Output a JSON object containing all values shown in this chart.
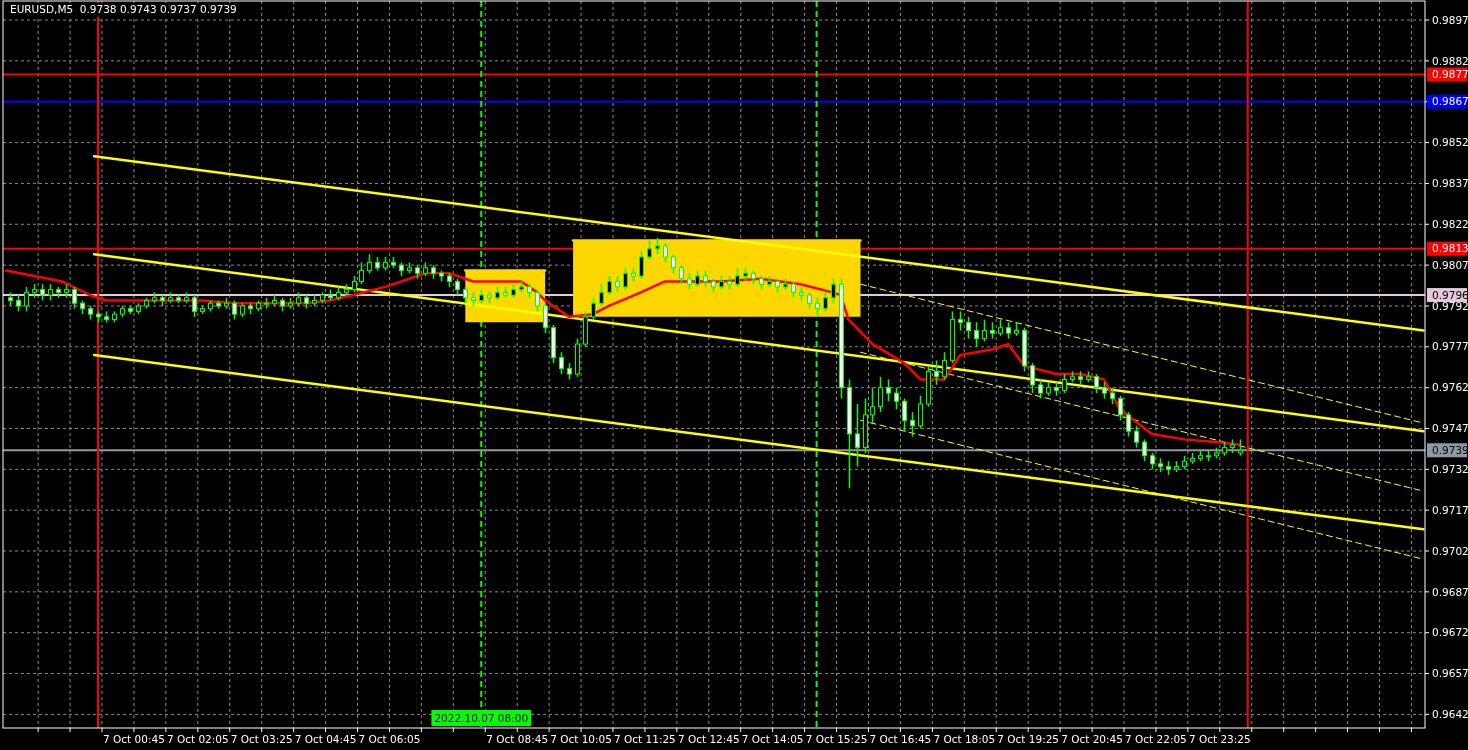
{
  "chart_data": {
    "type": "candlestick",
    "title": "EURUSD,M5  0.9738 0.9743 0.9737 0.9739",
    "xlim": [
      "2022-10-06T22:01",
      "2022-10-08T03:42"
    ],
    "ylim": [
      0.9637,
      0.9904
    ],
    "yticks": [
      0.9642,
      0.9657,
      0.9672,
      0.9687,
      0.9702,
      0.9717,
      0.9732,
      0.9747,
      0.9762,
      0.9777,
      0.9792,
      0.9807,
      0.9822,
      0.9837,
      0.9852,
      {
        "value": 0.9867,
        "label": null
      },
      0.9882,
      0.9897
    ],
    "xticks": [
      {
        "value": "2022-10-06T22:45",
        "label": null
      },
      {
        "value": "2022-10-06T23:25",
        "label": null
      },
      {
        "value": "2022-10-07T00:05",
        "label": null
      },
      {
        "value": "2022-10-07T00:45",
        "label": "7 Oct 00:45"
      },
      {
        "value": "2022-10-07T01:25",
        "label": null
      },
      {
        "value": "2022-10-07T02:05",
        "label": "7 Oct 02:05"
      },
      {
        "value": "2022-10-07T02:45",
        "label": null
      },
      {
        "value": "2022-10-07T03:25",
        "label": "7 Oct 03:25"
      },
      {
        "value": "2022-10-07T04:05",
        "label": null
      },
      {
        "value": "2022-10-07T04:45",
        "label": "7 Oct 04:45"
      },
      {
        "value": "2022-10-07T05:25",
        "label": null
      },
      {
        "value": "2022-10-07T06:05",
        "label": "7 Oct 06:05"
      },
      {
        "value": "2022-10-07T06:45",
        "label": null
      },
      {
        "value": "2022-10-07T07:25",
        "label": null
      },
      {
        "value": "2022-10-07T08:05",
        "label": null
      },
      {
        "value": "2022-10-07T08:45",
        "label": "7 Oct 08:45"
      },
      {
        "value": "2022-10-07T09:25",
        "label": null
      },
      {
        "value": "2022-10-07T10:05",
        "label": "7 Oct 10:05"
      },
      {
        "value": "2022-10-07T10:45",
        "label": null
      },
      {
        "value": "2022-10-07T11:25",
        "label": "7 Oct 11:25"
      },
      {
        "value": "2022-10-07T12:05",
        "label": null
      },
      {
        "value": "2022-10-07T12:45",
        "label": "7 Oct 12:45"
      },
      {
        "value": "2022-10-07T13:25",
        "label": null
      },
      {
        "value": "2022-10-07T14:05",
        "label": "7 Oct 14:05"
      },
      {
        "value": "2022-10-07T14:45",
        "label": null
      },
      {
        "value": "2022-10-07T15:25",
        "label": "7 Oct 15:25"
      },
      {
        "value": "2022-10-07T16:05",
        "label": null
      },
      {
        "value": "2022-10-07T16:45",
        "label": "7 Oct 16:45"
      },
      {
        "value": "2022-10-07T17:25",
        "label": null
      },
      {
        "value": "2022-10-07T18:05",
        "label": "7 Oct 18:05"
      },
      {
        "value": "2022-10-07T18:45",
        "label": null
      },
      {
        "value": "2022-10-07T19:25",
        "label": "7 Oct 19:25"
      },
      {
        "value": "2022-10-07T20:05",
        "label": null
      },
      {
        "value": "2022-10-07T20:45",
        "label": "7 Oct 20:45"
      },
      {
        "value": "2022-10-07T21:25",
        "label": null
      },
      {
        "value": "2022-10-07T22:05",
        "label": "7 Oct 22:05"
      },
      {
        "value": "2022-10-07T22:45",
        "label": null
      },
      {
        "value": "2022-10-07T23:25",
        "label": "7 Oct 23:25"
      },
      {
        "value": "2022-10-08T00:05",
        "label": null
      },
      {
        "value": "2022-10-08T00:45",
        "label": null
      },
      {
        "value": "2022-10-08T01:25",
        "label": null
      },
      {
        "value": "2022-10-08T02:05",
        "label": null
      },
      {
        "value": "2022-10-08T02:45",
        "label": null
      },
      {
        "value": "2022-10-08T03:25",
        "label": null
      }
    ],
    "grid": true,
    "ref_lines": [
      {
        "axis": "y",
        "value": 0.9877,
        "label": "0.9877",
        "color": "#ff0000"
      },
      {
        "axis": "y",
        "value": 0.9867,
        "label": "0.9867",
        "color": "#0000ff"
      },
      {
        "axis": "y",
        "value": 0.9813,
        "label": "0.9813",
        "color": "#ff0000"
      },
      {
        "axis": "y",
        "value": 0.9796,
        "label": "0.9796",
        "color": "#e6c8dc"
      },
      {
        "axis": "y",
        "value": 0.9739,
        "label": "0.9739",
        "color": "#8c9aa6"
      },
      {
        "axis": "x",
        "value": "2022-10-07T00:00",
        "color": "#ff0000"
      },
      {
        "axis": "x",
        "value": "2022-10-08T00:00",
        "color": "#ff0000"
      },
      {
        "axis": "x",
        "value": "2022-10-07T08:00",
        "label": "2022.10.07 08:00",
        "color": "#00ff00",
        "line_style": "dashed"
      },
      {
        "axis": "x",
        "value": "2022-10-07T15:00",
        "color": "#00ff00",
        "line_style": "dashed"
      }
    ],
    "series": [
      {
        "type": "line",
        "color": "#ffd700",
        "x": [
          "2022-10-07T07:40",
          "2022-10-07T09:20"
        ],
        "values": [
          0.9805,
          0.9805
        ],
        "upper": [
          0.9805,
          0.9805
        ],
        "lower": [
          0.9786,
          0.9786
        ]
      },
      {
        "type": "line",
        "color": "#ffd700",
        "x": [
          "2022-10-07T09:55",
          "2022-10-07T15:55"
        ],
        "values": [
          0.9816,
          0.9816
        ],
        "upper": [
          0.9816,
          0.9816
        ],
        "lower": [
          0.9788,
          0.9788
        ]
      },
      {
        "type": "line",
        "color": "#ffff00",
        "x": [
          "2022-10-06T23:55",
          "2022-10-08T03:40"
        ],
        "values": [
          0.9847,
          0.9783
        ]
      },
      {
        "type": "line",
        "color": "#ffff00",
        "x": [
          "2022-10-06T23:55",
          "2022-10-08T03:40"
        ],
        "values": [
          0.9811,
          0.9746
        ]
      },
      {
        "type": "line",
        "color": "#ffff00",
        "x": [
          "2022-10-06T23:55",
          "2022-10-08T03:40"
        ],
        "values": [
          0.9774,
          0.971
        ]
      },
      {
        "type": "line",
        "color": "#ffff00",
        "line_style": "dashed",
        "x": [
          "2022-10-07T15:55",
          "2022-10-08T03:40"
        ],
        "values": [
          0.98,
          0.9749
        ]
      },
      {
        "type": "line",
        "color": "#ffff00",
        "line_style": "dashed",
        "x": [
          "2022-10-07T15:55",
          "2022-10-08T03:40"
        ],
        "values": [
          0.9775,
          0.9724
        ]
      },
      {
        "type": "line",
        "color": "#ffff00",
        "line_style": "dashed",
        "x": [
          "2022-10-07T15:55",
          "2022-10-08T03:40"
        ],
        "values": [
          0.975,
          0.9699
        ]
      },
      {
        "type": "line",
        "color": "#ff0000",
        "x": [
          "2022-10-06T22:05",
          "2022-10-06T22:40",
          "2022-10-06T23:15",
          "2022-10-06T23:50",
          "2022-10-07T00:10",
          "2022-10-07T01:10",
          "2022-10-07T02:10",
          "2022-10-07T02:50",
          "2022-10-07T04:20",
          "2022-10-07T04:50",
          "2022-10-07T05:20",
          "2022-10-07T06:00",
          "2022-10-07T06:50",
          "2022-10-07T07:20",
          "2022-10-07T07:50",
          "2022-10-07T08:30",
          "2022-10-07T08:50",
          "2022-10-07T09:10",
          "2022-10-07T09:20",
          "2022-10-07T09:50",
          "2022-10-07T10:20",
          "2022-10-07T10:40",
          "2022-10-07T11:20",
          "2022-10-07T11:50",
          "2022-10-07T13:00",
          "2022-10-07T13:50",
          "2022-10-07T14:40",
          "2022-10-07T15:20",
          "2022-10-07T15:30",
          "2022-10-07T15:40",
          "2022-10-07T16:10",
          "2022-10-07T16:50",
          "2022-10-07T17:10",
          "2022-10-07T17:40",
          "2022-10-07T18:00",
          "2022-10-07T18:40",
          "2022-10-07T19:00",
          "2022-10-07T19:20",
          "2022-10-07T20:00",
          "2022-10-07T20:30",
          "2022-10-07T21:00",
          "2022-10-07T21:20",
          "2022-10-07T22:00",
          "2022-10-07T22:40",
          "2022-10-07T23:20",
          "2022-10-07T23:50"
        ],
        "values": [
          0.9805,
          0.9803,
          0.9801,
          0.9796,
          0.9794,
          0.9794,
          0.9794,
          0.9793,
          0.9793,
          0.9794,
          0.9796,
          0.9799,
          0.9804,
          0.9804,
          0.9801,
          0.9801,
          0.9801,
          0.9797,
          0.9794,
          0.9788,
          0.9789,
          0.9792,
          0.9797,
          0.9801,
          0.9801,
          0.9802,
          0.98,
          0.9797,
          0.9796,
          0.9787,
          0.9778,
          0.9771,
          0.9765,
          0.9765,
          0.9774,
          0.9776,
          0.9778,
          0.977,
          0.9767,
          0.9767,
          0.9765,
          0.9754,
          0.9745,
          0.9743,
          0.9742,
          0.9741
        ]
      },
      {
        "color": "#00ff00",
        "x": [
          "2022-10-06T22:10",
          "2022-10-06T22:20",
          "2022-10-06T22:30",
          "2022-10-06T22:40",
          "2022-10-06T22:50",
          "2022-10-06T23:00",
          "2022-10-06T23:10",
          "2022-10-06T23:20",
          "2022-10-06T23:30",
          "2022-10-06T23:40",
          "2022-10-06T23:50",
          "2022-10-07T00:00",
          "2022-10-07T00:10",
          "2022-10-07T00:20",
          "2022-10-07T00:30",
          "2022-10-07T00:40",
          "2022-10-07T00:50",
          "2022-10-07T01:00",
          "2022-10-07T01:10",
          "2022-10-07T01:20",
          "2022-10-07T01:30",
          "2022-10-07T01:40",
          "2022-10-07T01:50",
          "2022-10-07T02:00",
          "2022-10-07T02:10",
          "2022-10-07T02:20",
          "2022-10-07T02:30",
          "2022-10-07T02:40",
          "2022-10-07T02:50",
          "2022-10-07T03:00",
          "2022-10-07T03:10",
          "2022-10-07T03:20",
          "2022-10-07T03:30",
          "2022-10-07T03:40",
          "2022-10-07T03:50",
          "2022-10-07T04:00",
          "2022-10-07T04:10",
          "2022-10-07T04:20",
          "2022-10-07T04:30",
          "2022-10-07T04:40",
          "2022-10-07T04:50",
          "2022-10-07T05:00",
          "2022-10-07T05:10",
          "2022-10-07T05:20",
          "2022-10-07T05:30",
          "2022-10-07T05:40",
          "2022-10-07T05:50",
          "2022-10-07T06:00",
          "2022-10-07T06:10",
          "2022-10-07T06:20",
          "2022-10-07T06:30",
          "2022-10-07T06:40",
          "2022-10-07T06:50",
          "2022-10-07T07:00",
          "2022-10-07T07:10",
          "2022-10-07T07:20",
          "2022-10-07T07:30",
          "2022-10-07T07:40",
          "2022-10-07T07:50",
          "2022-10-07T08:00",
          "2022-10-07T08:10",
          "2022-10-07T08:20",
          "2022-10-07T08:30",
          "2022-10-07T08:40",
          "2022-10-07T08:50",
          "2022-10-07T09:00",
          "2022-10-07T09:10",
          "2022-10-07T09:20",
          "2022-10-07T09:30",
          "2022-10-07T09:40",
          "2022-10-07T09:50",
          "2022-10-07T10:00",
          "2022-10-07T10:10",
          "2022-10-07T10:20",
          "2022-10-07T10:30",
          "2022-10-07T10:40",
          "2022-10-07T10:50",
          "2022-10-07T11:00",
          "2022-10-07T11:10",
          "2022-10-07T11:20",
          "2022-10-07T11:30",
          "2022-10-07T11:40",
          "2022-10-07T11:50",
          "2022-10-07T12:00",
          "2022-10-07T12:10",
          "2022-10-07T12:20",
          "2022-10-07T12:30",
          "2022-10-07T12:40",
          "2022-10-07T12:50",
          "2022-10-07T13:00",
          "2022-10-07T13:10",
          "2022-10-07T13:20",
          "2022-10-07T13:30",
          "2022-10-07T13:40",
          "2022-10-07T13:50",
          "2022-10-07T14:00",
          "2022-10-07T14:10",
          "2022-10-07T14:20",
          "2022-10-07T14:30",
          "2022-10-07T14:40",
          "2022-10-07T14:50",
          "2022-10-07T15:00",
          "2022-10-07T15:10",
          "2022-10-07T15:20",
          "2022-10-07T15:30",
          "2022-10-07T15:40",
          "2022-10-07T15:50",
          "2022-10-07T16:00",
          "2022-10-07T16:10",
          "2022-10-07T16:20",
          "2022-10-07T16:30",
          "2022-10-07T16:40",
          "2022-10-07T16:50",
          "2022-10-07T17:00",
          "2022-10-07T17:10",
          "2022-10-07T17:20",
          "2022-10-07T17:30",
          "2022-10-07T17:40",
          "2022-10-07T17:50",
          "2022-10-07T18:00",
          "2022-10-07T18:10",
          "2022-10-07T18:20",
          "2022-10-07T18:30",
          "2022-10-07T18:40",
          "2022-10-07T18:50",
          "2022-10-07T19:00",
          "2022-10-07T19:10",
          "2022-10-07T19:20",
          "2022-10-07T19:30",
          "2022-10-07T19:40",
          "2022-10-07T19:50",
          "2022-10-07T20:00",
          "2022-10-07T20:10",
          "2022-10-07T20:20",
          "2022-10-07T20:30",
          "2022-10-07T20:40",
          "2022-10-07T20:50",
          "2022-10-07T21:00",
          "2022-10-07T21:10",
          "2022-10-07T21:20",
          "2022-10-07T21:30",
          "2022-10-07T21:40",
          "2022-10-07T21:50",
          "2022-10-07T22:00",
          "2022-10-07T22:10",
          "2022-10-07T22:20",
          "2022-10-07T22:30",
          "2022-10-07T22:40",
          "2022-10-07T22:50",
          "2022-10-07T23:00",
          "2022-10-07T23:10",
          "2022-10-07T23:20",
          "2022-10-07T23:30",
          "2022-10-07T23:40",
          "2022-10-07T23:50"
        ],
        "ohlc": [
          [
            0.9795,
            0.9797,
            0.9792,
            0.9794
          ],
          [
            0.9794,
            0.9796,
            0.979,
            0.9792
          ],
          [
            0.9792,
            0.9799,
            0.979,
            0.9797
          ],
          [
            0.9797,
            0.98,
            0.9795,
            0.9798
          ],
          [
            0.9798,
            0.98,
            0.9794,
            0.9796
          ],
          [
            0.9796,
            0.98,
            0.9794,
            0.9798
          ],
          [
            0.9798,
            0.9799,
            0.9795,
            0.9797
          ],
          [
            0.9797,
            0.98,
            0.9795,
            0.9798
          ],
          [
            0.9798,
            0.9799,
            0.9791,
            0.9793
          ],
          [
            0.9793,
            0.9794,
            0.9789,
            0.9791
          ],
          [
            0.9791,
            0.9792,
            0.9787,
            0.9789
          ],
          [
            0.9789,
            0.979,
            0.9786,
            0.9788
          ],
          [
            0.9788,
            0.979,
            0.9786,
            0.9787
          ],
          [
            0.9787,
            0.979,
            0.9786,
            0.9789
          ],
          [
            0.9789,
            0.9792,
            0.9788,
            0.9791
          ],
          [
            0.9791,
            0.9792,
            0.9789,
            0.979
          ],
          [
            0.979,
            0.9793,
            0.9789,
            0.9792
          ],
          [
            0.9792,
            0.9795,
            0.9791,
            0.9794
          ],
          [
            0.9794,
            0.9797,
            0.9793,
            0.9795
          ],
          [
            0.9795,
            0.9796,
            0.9792,
            0.9794
          ],
          [
            0.9794,
            0.9797,
            0.9793,
            0.9795
          ],
          [
            0.9795,
            0.9796,
            0.9793,
            0.9794
          ],
          [
            0.9794,
            0.9797,
            0.9793,
            0.9795
          ],
          [
            0.9795,
            0.9796,
            0.9788,
            0.979
          ],
          [
            0.979,
            0.9792,
            0.9789,
            0.9791
          ],
          [
            0.9791,
            0.9794,
            0.979,
            0.9793
          ],
          [
            0.9793,
            0.9794,
            0.9791,
            0.9792
          ],
          [
            0.9792,
            0.9795,
            0.9791,
            0.9793
          ],
          [
            0.9793,
            0.9794,
            0.9787,
            0.9789
          ],
          [
            0.9789,
            0.9793,
            0.9788,
            0.9792
          ],
          [
            0.9792,
            0.9793,
            0.9789,
            0.9791
          ],
          [
            0.9791,
            0.9794,
            0.979,
            0.9793
          ],
          [
            0.9793,
            0.9795,
            0.9791,
            0.9793
          ],
          [
            0.9793,
            0.9796,
            0.9792,
            0.9794
          ],
          [
            0.9794,
            0.9795,
            0.979,
            0.9792
          ],
          [
            0.9792,
            0.9795,
            0.9791,
            0.9793
          ],
          [
            0.9793,
            0.9797,
            0.9792,
            0.9795
          ],
          [
            0.9795,
            0.9796,
            0.9791,
            0.9793
          ],
          [
            0.9793,
            0.9796,
            0.9792,
            0.9794
          ],
          [
            0.9794,
            0.9797,
            0.9793,
            0.9796
          ],
          [
            0.9796,
            0.9798,
            0.9794,
            0.9795
          ],
          [
            0.9795,
            0.9799,
            0.9794,
            0.9797
          ],
          [
            0.9797,
            0.98,
            0.9796,
            0.9798
          ],
          [
            0.9798,
            0.9803,
            0.9797,
            0.9801
          ],
          [
            0.9801,
            0.9808,
            0.98,
            0.9805
          ],
          [
            0.9805,
            0.9811,
            0.9804,
            0.9808
          ],
          [
            0.9808,
            0.981,
            0.9805,
            0.9806
          ],
          [
            0.9806,
            0.981,
            0.9805,
            0.9808
          ],
          [
            0.9808,
            0.981,
            0.9806,
            0.9807
          ],
          [
            0.9807,
            0.9808,
            0.9803,
            0.9805
          ],
          [
            0.9805,
            0.9808,
            0.9804,
            0.9806
          ],
          [
            0.9806,
            0.9807,
            0.9802,
            0.9804
          ],
          [
            0.9804,
            0.9808,
            0.9803,
            0.9806
          ],
          [
            0.9806,
            0.9807,
            0.9802,
            0.9804
          ],
          [
            0.9804,
            0.9805,
            0.9801,
            0.9803
          ],
          [
            0.9803,
            0.9804,
            0.9799,
            0.9801
          ],
          [
            0.9801,
            0.9802,
            0.9796,
            0.9798
          ],
          [
            0.9798,
            0.9799,
            0.9793,
            0.9795
          ],
          [
            0.9795,
            0.9797,
            0.9792,
            0.9794
          ],
          [
            0.9794,
            0.9798,
            0.9793,
            0.9796
          ],
          [
            0.9796,
            0.9797,
            0.9793,
            0.9795
          ],
          [
            0.9795,
            0.9799,
            0.9794,
            0.9797
          ],
          [
            0.9797,
            0.9799,
            0.9795,
            0.9796
          ],
          [
            0.9796,
            0.98,
            0.9795,
            0.9798
          ],
          [
            0.9798,
            0.9801,
            0.9797,
            0.9799
          ],
          [
            0.9799,
            0.98,
            0.9795,
            0.9797
          ],
          [
            0.9797,
            0.9798,
            0.979,
            0.9792
          ],
          [
            0.9792,
            0.9793,
            0.9782,
            0.9784
          ],
          [
            0.9784,
            0.9785,
            0.9771,
            0.9773
          ],
          [
            0.9773,
            0.9775,
            0.9767,
            0.9769
          ],
          [
            0.9769,
            0.9771,
            0.9765,
            0.9767
          ],
          [
            0.9767,
            0.978,
            0.9766,
            0.9778
          ],
          [
            0.9778,
            0.979,
            0.9777,
            0.9788
          ],
          [
            0.9788,
            0.9795,
            0.9787,
            0.9793
          ],
          [
            0.9793,
            0.98,
            0.9792,
            0.9797
          ],
          [
            0.9797,
            0.9803,
            0.9796,
            0.9801
          ],
          [
            0.9801,
            0.9803,
            0.9797,
            0.9799
          ],
          [
            0.9799,
            0.9806,
            0.9798,
            0.9804
          ],
          [
            0.9804,
            0.9806,
            0.9801,
            0.9803
          ],
          [
            0.9803,
            0.9812,
            0.9802,
            0.981
          ],
          [
            0.981,
            0.9816,
            0.9809,
            0.9813
          ],
          [
            0.9813,
            0.9817,
            0.9811,
            0.9814
          ],
          [
            0.9814,
            0.9815,
            0.9808,
            0.981
          ],
          [
            0.981,
            0.9811,
            0.9804,
            0.9806
          ],
          [
            0.9806,
            0.9807,
            0.98,
            0.9802
          ],
          [
            0.9802,
            0.9804,
            0.9798,
            0.98
          ],
          [
            0.98,
            0.9805,
            0.9799,
            0.9803
          ],
          [
            0.9803,
            0.9805,
            0.9799,
            0.9801
          ],
          [
            0.9801,
            0.9802,
            0.9797,
            0.9799
          ],
          [
            0.9799,
            0.9803,
            0.9798,
            0.9801
          ],
          [
            0.9801,
            0.9803,
            0.9798,
            0.98
          ],
          [
            0.98,
            0.9806,
            0.9799,
            0.9803
          ],
          [
            0.9803,
            0.9806,
            0.9801,
            0.9804
          ],
          [
            0.9804,
            0.9805,
            0.98,
            0.9802
          ],
          [
            0.9802,
            0.9803,
            0.9798,
            0.98
          ],
          [
            0.98,
            0.9803,
            0.9799,
            0.9801
          ],
          [
            0.9801,
            0.9802,
            0.9797,
            0.9799
          ],
          [
            0.9799,
            0.9802,
            0.9798,
            0.98
          ],
          [
            0.98,
            0.9801,
            0.9795,
            0.9797
          ],
          [
            0.9797,
            0.9799,
            0.9794,
            0.9796
          ],
          [
            0.9796,
            0.9797,
            0.9791,
            0.9793
          ],
          [
            0.9793,
            0.9795,
            0.9788,
            0.9791
          ],
          [
            0.9791,
            0.9797,
            0.979,
            0.9795
          ],
          [
            0.9795,
            0.9802,
            0.9793,
            0.98
          ],
          [
            0.98,
            0.9802,
            0.9758,
            0.9762
          ],
          [
            0.9762,
            0.9765,
            0.9725,
            0.9745
          ],
          [
            0.9745,
            0.9756,
            0.9733,
            0.974
          ],
          [
            0.974,
            0.9758,
            0.9738,
            0.9752
          ],
          [
            0.9752,
            0.9762,
            0.9749,
            0.9755
          ],
          [
            0.9755,
            0.9766,
            0.9753,
            0.9762
          ],
          [
            0.9762,
            0.9765,
            0.9757,
            0.976
          ],
          [
            0.976,
            0.9762,
            0.9754,
            0.9757
          ],
          [
            0.9757,
            0.9758,
            0.9746,
            0.975
          ],
          [
            0.975,
            0.9753,
            0.9744,
            0.9748
          ],
          [
            0.9748,
            0.9759,
            0.9747,
            0.9756
          ],
          [
            0.9756,
            0.977,
            0.9755,
            0.9768
          ],
          [
            0.9768,
            0.9772,
            0.9763,
            0.9766
          ],
          [
            0.9766,
            0.9775,
            0.9765,
            0.9772
          ],
          [
            0.9772,
            0.979,
            0.9771,
            0.9787
          ],
          [
            0.9787,
            0.979,
            0.9783,
            0.9786
          ],
          [
            0.9786,
            0.9788,
            0.978,
            0.9783
          ],
          [
            0.9783,
            0.9786,
            0.9777,
            0.978
          ],
          [
            0.978,
            0.9787,
            0.9779,
            0.9783
          ],
          [
            0.9783,
            0.9786,
            0.978,
            0.9782
          ],
          [
            0.9782,
            0.9787,
            0.9781,
            0.9784
          ],
          [
            0.9784,
            0.9786,
            0.978,
            0.9782
          ],
          [
            0.9782,
            0.9786,
            0.9781,
            0.9783
          ],
          [
            0.9783,
            0.9784,
            0.9768,
            0.977
          ],
          [
            0.977,
            0.9771,
            0.976,
            0.9763
          ],
          [
            0.9763,
            0.9765,
            0.9758,
            0.976
          ],
          [
            0.976,
            0.9764,
            0.9759,
            0.9762
          ],
          [
            0.9762,
            0.9764,
            0.9759,
            0.9761
          ],
          [
            0.9761,
            0.9767,
            0.976,
            0.9765
          ],
          [
            0.9765,
            0.9768,
            0.9764,
            0.9766
          ],
          [
            0.9766,
            0.9768,
            0.9763,
            0.9765
          ],
          [
            0.9765,
            0.9768,
            0.9764,
            0.9766
          ],
          [
            0.9766,
            0.9767,
            0.976,
            0.9762
          ],
          [
            0.9762,
            0.9764,
            0.9758,
            0.976
          ],
          [
            0.976,
            0.9762,
            0.9756,
            0.9758
          ],
          [
            0.9758,
            0.9759,
            0.975,
            0.9752
          ],
          [
            0.9752,
            0.9753,
            0.9744,
            0.9746
          ],
          [
            0.9746,
            0.9748,
            0.974,
            0.9742
          ],
          [
            0.9742,
            0.9743,
            0.9735,
            0.9737
          ],
          [
            0.9737,
            0.9738,
            0.9732,
            0.9734
          ],
          [
            0.9734,
            0.9736,
            0.9731,
            0.9733
          ],
          [
            0.9733,
            0.9735,
            0.973,
            0.9732
          ],
          [
            0.9732,
            0.9735,
            0.9731,
            0.9733
          ],
          [
            0.9733,
            0.9737,
            0.9732,
            0.9735
          ],
          [
            0.9735,
            0.9738,
            0.9734,
            0.9736
          ],
          [
            0.9736,
            0.9739,
            0.9735,
            0.9737
          ],
          [
            0.9737,
            0.9739,
            0.9735,
            0.9737
          ],
          [
            0.9737,
            0.974,
            0.9736,
            0.9738
          ],
          [
            0.9738,
            0.9742,
            0.9737,
            0.974
          ],
          [
            0.974,
            0.9743,
            0.9738,
            0.9741
          ],
          [
            0.9738,
            0.9743,
            0.9737,
            0.9739
          ]
        ]
      }
    ]
  }
}
